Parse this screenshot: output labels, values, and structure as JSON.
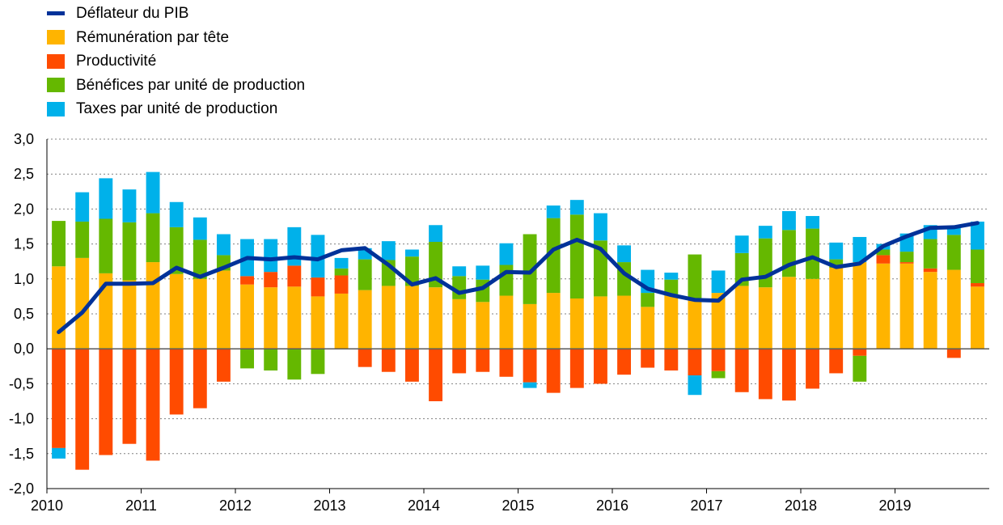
{
  "chart_data": {
    "type": "bar",
    "title": "",
    "xlabel": "",
    "ylabel": "",
    "ylim": [
      -2.0,
      3.0
    ],
    "yticks": [
      "3,0",
      "2,5",
      "2,0",
      "1,5",
      "1,0",
      "0,5",
      "0,0",
      "-0,5",
      "-1,0",
      "-1,5",
      "-2,0"
    ],
    "xticks": [
      "2010",
      "2011",
      "2012",
      "2013",
      "2014",
      "2015",
      "2016",
      "2017",
      "2018",
      "2019"
    ],
    "x_start_year": 2010,
    "quarters": [
      "2010T1",
      "2010T2",
      "2010T3",
      "2010T4",
      "2011T1",
      "2011T2",
      "2011T3",
      "2011T4",
      "2012T1",
      "2012T2",
      "2012T3",
      "2012T4",
      "2013T1",
      "2013T2",
      "2013T3",
      "2013T4",
      "2014T1",
      "2014T2",
      "2014T3",
      "2014T4",
      "2015T1",
      "2015T2",
      "2015T3",
      "2015T4",
      "2016T1",
      "2016T2",
      "2016T3",
      "2016T4",
      "2017T1",
      "2017T2",
      "2017T3",
      "2017T4",
      "2018T1",
      "2018T2",
      "2018T3",
      "2018T4",
      "2019T1",
      "2019T2",
      "2019T3",
      "2019T4"
    ],
    "legend_position": "top-left",
    "series": [
      {
        "name": "Rémunération par tête",
        "color": "#FFB400",
        "values": [
          1.18,
          1.3,
          1.08,
          0.98,
          1.24,
          1.07,
          1.0,
          1.12,
          0.92,
          0.88,
          0.89,
          0.75,
          0.79,
          0.84,
          0.9,
          0.9,
          0.88,
          0.71,
          0.67,
          0.76,
          0.64,
          0.8,
          0.72,
          0.75,
          0.76,
          0.6,
          0.76,
          0.7,
          0.8,
          0.9,
          0.88,
          1.03,
          1.0,
          1.16,
          1.24,
          1.22,
          1.22,
          1.1,
          1.13,
          0.89
        ]
      },
      {
        "name": "Productivité",
        "color": "#FF4B00",
        "values": [
          -1.42,
          -1.73,
          -1.52,
          -1.36,
          -1.6,
          -0.94,
          -0.85,
          -0.47,
          0.12,
          0.22,
          0.3,
          0.27,
          0.26,
          -0.26,
          -0.33,
          -0.47,
          -0.75,
          -0.35,
          -0.33,
          -0.4,
          -0.48,
          -0.63,
          -0.56,
          -0.5,
          -0.37,
          -0.27,
          -0.31,
          -0.38,
          -0.32,
          -0.62,
          -0.72,
          -0.74,
          -0.57,
          -0.35,
          -0.1,
          0.12,
          0.02,
          0.05,
          -0.13,
          0.05
        ]
      },
      {
        "name": "Bénéfices par unité de production",
        "color": "#65B800",
        "values": [
          0.65,
          0.52,
          0.78,
          0.83,
          0.7,
          0.67,
          0.56,
          0.22,
          -0.28,
          -0.31,
          -0.44,
          -0.36,
          0.1,
          0.44,
          0.37,
          0.42,
          0.65,
          0.33,
          0.32,
          0.44,
          1.0,
          1.07,
          1.2,
          0.8,
          0.48,
          0.2,
          0.23,
          0.65,
          -0.1,
          0.47,
          0.7,
          0.67,
          0.72,
          0.12,
          -0.37,
          0.08,
          0.15,
          0.42,
          0.5,
          0.48
        ]
      },
      {
        "name": "Taxes par unité de production",
        "color": "#00B1EA",
        "values": [
          -0.15,
          0.42,
          0.58,
          0.47,
          0.59,
          0.36,
          0.32,
          0.3,
          0.53,
          0.47,
          0.55,
          0.61,
          0.15,
          0.16,
          0.27,
          0.1,
          0.24,
          0.14,
          0.2,
          0.31,
          -0.08,
          0.18,
          0.21,
          0.39,
          0.24,
          0.33,
          0.1,
          -0.28,
          0.32,
          0.25,
          0.18,
          0.27,
          0.18,
          0.24,
          0.36,
          0.08,
          0.26,
          0.2,
          0.12,
          0.4
        ]
      }
    ],
    "line": {
      "name": "Déflateur du PIB",
      "color": "#003299",
      "values": [
        0.24,
        0.52,
        0.93,
        0.93,
        0.94,
        1.16,
        1.03,
        1.16,
        1.3,
        1.28,
        1.31,
        1.28,
        1.41,
        1.44,
        1.2,
        0.92,
        1.01,
        0.8,
        0.87,
        1.1,
        1.09,
        1.42,
        1.56,
        1.43,
        1.08,
        0.86,
        0.77,
        0.7,
        0.69,
        0.99,
        1.03,
        1.2,
        1.31,
        1.17,
        1.22,
        1.47,
        1.61,
        1.73,
        1.74,
        1.8
      ]
    },
    "legend": [
      {
        "label": "Déflateur du PIB",
        "color": "#003299",
        "kind": "line"
      },
      {
        "label": "Rémunération par tête",
        "color": "#FFB400",
        "kind": "box"
      },
      {
        "label": "Productivité",
        "color": "#FF4B00",
        "kind": "box"
      },
      {
        "label": "Bénéfices par unité de production",
        "color": "#65B800",
        "kind": "box"
      },
      {
        "label": "Taxes par unité de production",
        "color": "#00B1EA",
        "kind": "box"
      }
    ]
  }
}
